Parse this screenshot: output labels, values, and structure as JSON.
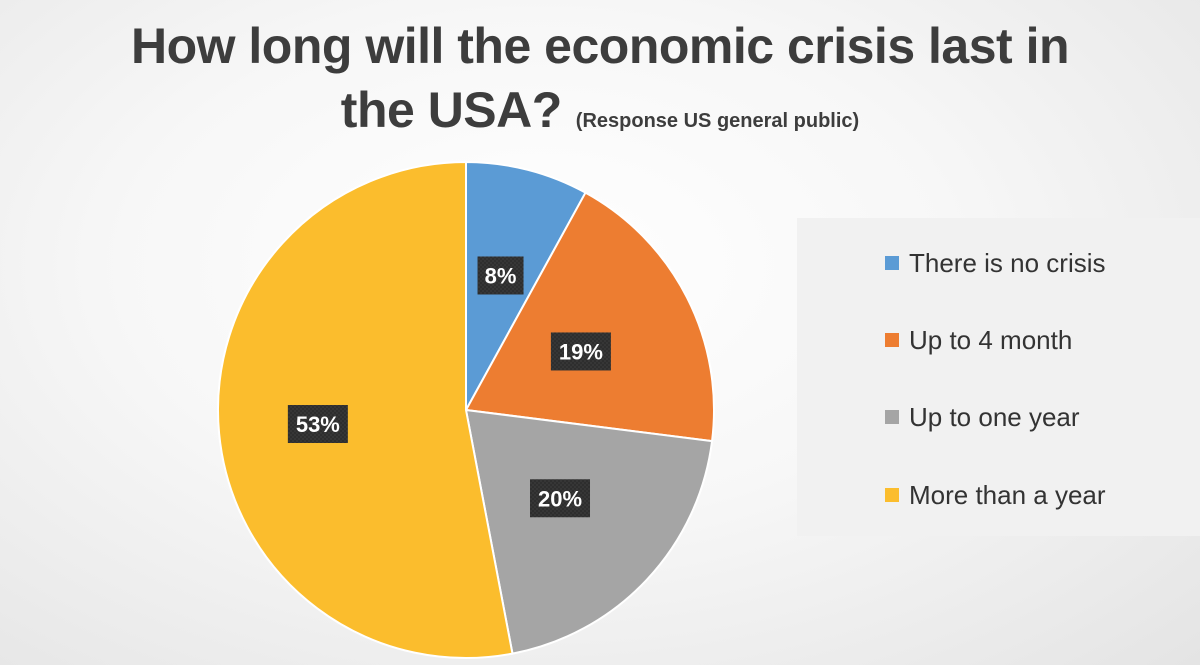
{
  "title": {
    "line1": "How long will the economic crisis last in",
    "line2": "the USA?",
    "subtitle": "(Response US general public)"
  },
  "chart_data": {
    "type": "pie",
    "title": "How long will the economic crisis last in the USA?",
    "subtitle": "(Response US general public)",
    "categories": [
      "There is no crisis",
      "Up to 4 month",
      "Up to one year",
      "More than a year"
    ],
    "values": [
      8,
      19,
      20,
      53
    ],
    "data_labels": [
      "8%",
      "19%",
      "20%",
      "53%"
    ],
    "colors": [
      "#5b9bd5",
      "#ed7d31",
      "#a5a5a5",
      "#fbbd2d"
    ],
    "start_angle_deg": 0,
    "direction": "clockwise",
    "legend": "right"
  }
}
